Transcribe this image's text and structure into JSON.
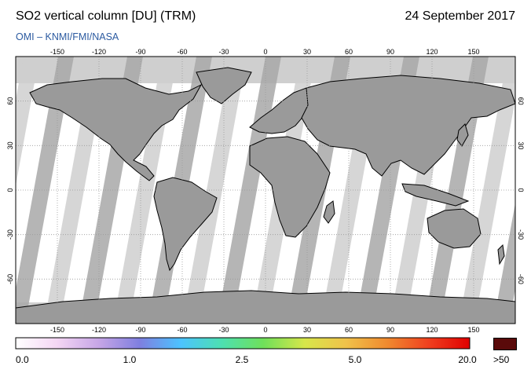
{
  "header": {
    "title": "SO2 vertical column [DU] (TRM)",
    "date": "24 September 2017",
    "source": "OMI  –  KNMI/FMI/NASA"
  },
  "map": {
    "lon_ticks_top": [
      "-150",
      "-120",
      "-90",
      "-60",
      "-30",
      "0",
      "30",
      "60",
      "90",
      "120",
      "150"
    ],
    "lon_ticks_bottom": [
      "-150",
      "-120",
      "-90",
      "-60",
      "-30",
      "0",
      "30",
      "60",
      "90",
      "120",
      "150"
    ],
    "lat_ticks_left": [
      "60",
      "30",
      "0",
      "-30",
      "-60"
    ],
    "lat_ticks_right": [
      "60",
      "30",
      "0",
      "-30",
      "-60"
    ],
    "colors": {
      "no_data": "#cfcfcf",
      "orbit_gap_dark": "#a8a8a8",
      "land_fill": "#9a9a9a",
      "coastline": "#000000",
      "grid": "#999999"
    }
  },
  "colorbar": {
    "labels": [
      "0.0",
      "1.0",
      "2.5",
      "5.0",
      "20.0"
    ],
    "over_label": ">50",
    "over_color": "#5a0a0a",
    "stops": [
      "#ffffff",
      "#f4d6f4",
      "#c7a6e6",
      "#7f7fe0",
      "#4cc3ff",
      "#4de0b0",
      "#6fe05a",
      "#d7e64a",
      "#f0c24a",
      "#f08a2f",
      "#f0401f",
      "#e00000"
    ]
  }
}
